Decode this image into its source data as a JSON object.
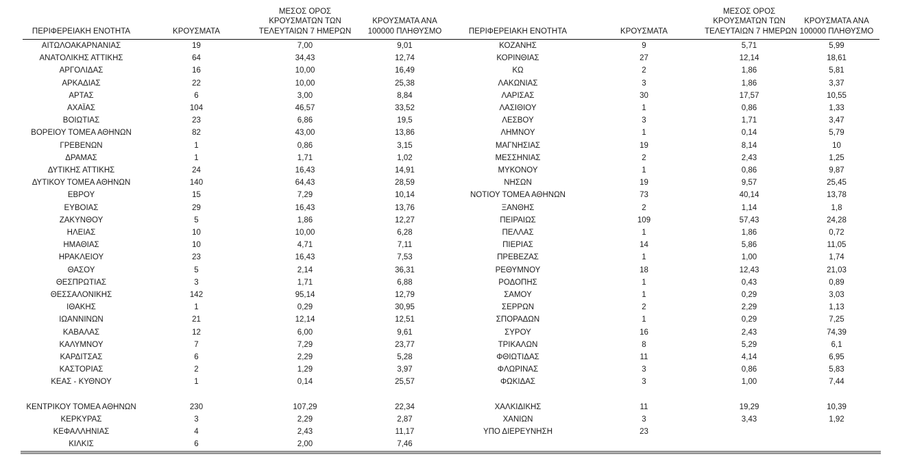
{
  "table": {
    "headers": {
      "region": "ΠΕΡΙΦΕΡΕΙΑΚΗ ΕΝΟΤΗΤΑ",
      "cases": "ΚΡΟΥΣΜΑΤΑ",
      "avg7_lines": [
        "ΜΕΣΟΣ ΟΡΟΣ",
        "ΚΡΟΥΣΜΑΤΩΝ ΤΩΝ",
        "ΤΕΛΕΥΤΑΙΩΝ 7 ΗΜΕΡΩΝ"
      ],
      "per100k_lines": [
        "ΚΡΟΥΣΜΑΤΑ ΑΝΑ",
        "100000 ΠΛΗΘΥΣΜΟ"
      ]
    },
    "left_rows": [
      {
        "region": "ΑΙΤΩΛΟΑΚΑΡΝΑΝΙΑΣ",
        "cases": "19",
        "avg7": "7,00",
        "per100k": "9,01"
      },
      {
        "region": "ΑΝΑΤΟΛΙΚΗΣ ΑΤΤΙΚΗΣ",
        "cases": "64",
        "avg7": "34,43",
        "per100k": "12,74"
      },
      {
        "region": "ΑΡΓΟΛΙΔΑΣ",
        "cases": "16",
        "avg7": "10,00",
        "per100k": "16,49"
      },
      {
        "region": "ΑΡΚΑΔΙΑΣ",
        "cases": "22",
        "avg7": "10,00",
        "per100k": "25,38"
      },
      {
        "region": "ΑΡΤΑΣ",
        "cases": "6",
        "avg7": "3,00",
        "per100k": "8,84"
      },
      {
        "region": "ΑΧΑΪΑΣ",
        "cases": "104",
        "avg7": "46,57",
        "per100k": "33,52"
      },
      {
        "region": "ΒΟΙΩΤΙΑΣ",
        "cases": "23",
        "avg7": "6,86",
        "per100k": "19,5"
      },
      {
        "region": "ΒΟΡΕΙΟΥ ΤΟΜΕΑ ΑΘΗΝΩΝ",
        "cases": "82",
        "avg7": "43,00",
        "per100k": "13,86"
      },
      {
        "region": "ΓΡΕΒΕΝΩΝ",
        "cases": "1",
        "avg7": "0,86",
        "per100k": "3,15"
      },
      {
        "region": "ΔΡΑΜΑΣ",
        "cases": "1",
        "avg7": "1,71",
        "per100k": "1,02"
      },
      {
        "region": "ΔΥΤΙΚΗΣ ΑΤΤΙΚΗΣ",
        "cases": "24",
        "avg7": "16,43",
        "per100k": "14,91"
      },
      {
        "region": "ΔΥΤΙΚΟΥ ΤΟΜΕΑ ΑΘΗΝΩΝ",
        "cases": "140",
        "avg7": "64,43",
        "per100k": "28,59"
      },
      {
        "region": "ΕΒΡΟΥ",
        "cases": "15",
        "avg7": "7,29",
        "per100k": "10,14"
      },
      {
        "region": "ΕΥΒΟΙΑΣ",
        "cases": "29",
        "avg7": "16,43",
        "per100k": "13,76"
      },
      {
        "region": "ΖΑΚΥΝΘΟΥ",
        "cases": "5",
        "avg7": "1,86",
        "per100k": "12,27"
      },
      {
        "region": "ΗΛΕΙΑΣ",
        "cases": "10",
        "avg7": "10,00",
        "per100k": "6,28"
      },
      {
        "region": "ΗΜΑΘΙΑΣ",
        "cases": "10",
        "avg7": "4,71",
        "per100k": "7,11"
      },
      {
        "region": "ΗΡΑΚΛΕΙΟΥ",
        "cases": "23",
        "avg7": "16,43",
        "per100k": "7,53"
      },
      {
        "region": "ΘΑΣΟΥ",
        "cases": "5",
        "avg7": "2,14",
        "per100k": "36,31"
      },
      {
        "region": "ΘΕΣΠΡΩΤΙΑΣ",
        "cases": "3",
        "avg7": "1,71",
        "per100k": "6,88"
      },
      {
        "region": "ΘΕΣΣΑΛΟΝΙΚΗΣ",
        "cases": "142",
        "avg7": "95,14",
        "per100k": "12,79"
      },
      {
        "region": "ΙΘΑΚΗΣ",
        "cases": "1",
        "avg7": "0,29",
        "per100k": "30,95"
      },
      {
        "region": "ΙΩΑΝΝΙΝΩΝ",
        "cases": "21",
        "avg7": "12,14",
        "per100k": "12,51"
      },
      {
        "region": "ΚΑΒΑΛΑΣ",
        "cases": "12",
        "avg7": "6,00",
        "per100k": "9,61"
      },
      {
        "region": "ΚΑΛΥΜΝΟΥ",
        "cases": "7",
        "avg7": "7,29",
        "per100k": "23,77"
      },
      {
        "region": "ΚΑΡΔΙΤΣΑΣ",
        "cases": "6",
        "avg7": "2,29",
        "per100k": "5,28"
      },
      {
        "region": "ΚΑΣΤΟΡΙΑΣ",
        "cases": "2",
        "avg7": "1,29",
        "per100k": "3,97"
      },
      {
        "region": "ΚΕΑΣ - ΚΥΘΝΟΥ",
        "cases": "1",
        "avg7": "0,14",
        "per100k": "25,57"
      },
      {
        "region": "",
        "cases": "",
        "avg7": "",
        "per100k": ""
      },
      {
        "region": "ΚΕΝΤΡΙΚΟΥ ΤΟΜΕΑ ΑΘΗΝΩΝ",
        "cases": "230",
        "avg7": "107,29",
        "per100k": "22,34"
      },
      {
        "region": "ΚΕΡΚΥΡΑΣ",
        "cases": "3",
        "avg7": "2,29",
        "per100k": "2,87"
      },
      {
        "region": "ΚΕΦΑΛΛΗΝΙΑΣ",
        "cases": "4",
        "avg7": "2,43",
        "per100k": "11,17"
      },
      {
        "region": "ΚΙΛΚΙΣ",
        "cases": "6",
        "avg7": "2,00",
        "per100k": "7,46"
      }
    ],
    "right_rows": [
      {
        "region": "ΚΟΖΑΝΗΣ",
        "cases": "9",
        "avg7": "5,71",
        "per100k": "5,99"
      },
      {
        "region": "ΚΟΡΙΝΘΙΑΣ",
        "cases": "27",
        "avg7": "12,14",
        "per100k": "18,61"
      },
      {
        "region": "ΚΩ",
        "cases": "2",
        "avg7": "1,86",
        "per100k": "5,81"
      },
      {
        "region": "ΛΑΚΩΝΙΑΣ",
        "cases": "3",
        "avg7": "1,86",
        "per100k": "3,37"
      },
      {
        "region": "ΛΑΡΙΣΑΣ",
        "cases": "30",
        "avg7": "17,57",
        "per100k": "10,55"
      },
      {
        "region": "ΛΑΣΙΘΙΟΥ",
        "cases": "1",
        "avg7": "0,86",
        "per100k": "1,33"
      },
      {
        "region": "ΛΕΣΒΟΥ",
        "cases": "3",
        "avg7": "1,71",
        "per100k": "3,47"
      },
      {
        "region": "ΛΗΜΝΟΥ",
        "cases": "1",
        "avg7": "0,14",
        "per100k": "5,79"
      },
      {
        "region": "ΜΑΓΝΗΣΙΑΣ",
        "cases": "19",
        "avg7": "8,14",
        "per100k": "10"
      },
      {
        "region": "ΜΕΣΣΗΝΙΑΣ",
        "cases": "2",
        "avg7": "2,43",
        "per100k": "1,25"
      },
      {
        "region": "ΜΥΚΟΝΟΥ",
        "cases": "1",
        "avg7": "0,86",
        "per100k": "9,87"
      },
      {
        "region": "ΝΗΣΩΝ",
        "cases": "19",
        "avg7": "9,57",
        "per100k": "25,45"
      },
      {
        "region": "ΝΟΤΙΟΥ ΤΟΜΕΑ ΑΘΗΝΩΝ",
        "cases": "73",
        "avg7": "40,14",
        "per100k": "13,78"
      },
      {
        "region": "ΞΑΝΘΗΣ",
        "cases": "2",
        "avg7": "1,14",
        "per100k": "1,8"
      },
      {
        "region": "ΠΕΙΡΑΙΩΣ",
        "cases": "109",
        "avg7": "57,43",
        "per100k": "24,28"
      },
      {
        "region": "ΠΕΛΛΑΣ",
        "cases": "1",
        "avg7": "1,86",
        "per100k": "0,72"
      },
      {
        "region": "ΠΙΕΡΙΑΣ",
        "cases": "14",
        "avg7": "5,86",
        "per100k": "11,05"
      },
      {
        "region": "ΠΡΕΒΕΖΑΣ",
        "cases": "1",
        "avg7": "1,00",
        "per100k": "1,74"
      },
      {
        "region": "ΡΕΘΥΜΝΟΥ",
        "cases": "18",
        "avg7": "12,43",
        "per100k": "21,03"
      },
      {
        "region": "ΡΟΔΟΠΗΣ",
        "cases": "1",
        "avg7": "0,43",
        "per100k": "0,89"
      },
      {
        "region": "ΣΑΜΟΥ",
        "cases": "1",
        "avg7": "0,29",
        "per100k": "3,03"
      },
      {
        "region": "ΣΕΡΡΩΝ",
        "cases": "2",
        "avg7": "2,29",
        "per100k": "1,13"
      },
      {
        "region": "ΣΠΟΡΑΔΩΝ",
        "cases": "1",
        "avg7": "0,29",
        "per100k": "7,25"
      },
      {
        "region": "ΣΥΡΟΥ",
        "cases": "16",
        "avg7": "2,43",
        "per100k": "74,39"
      },
      {
        "region": "ΤΡΙΚΑΛΩΝ",
        "cases": "8",
        "avg7": "5,29",
        "per100k": "6,1"
      },
      {
        "region": "ΦΘΙΩΤΙΔΑΣ",
        "cases": "11",
        "avg7": "4,14",
        "per100k": "6,95"
      },
      {
        "region": "ΦΛΩΡΙΝΑΣ",
        "cases": "3",
        "avg7": "0,86",
        "per100k": "5,83"
      },
      {
        "region": "ΦΩΚΙΔΑΣ",
        "cases": "3",
        "avg7": "1,00",
        "per100k": "7,44"
      },
      {
        "region": "",
        "cases": "",
        "avg7": "",
        "per100k": ""
      },
      {
        "region": "ΧΑΛΚΙΔΙΚΗΣ",
        "cases": "11",
        "avg7": "19,29",
        "per100k": "10,39"
      },
      {
        "region": "ΧΑΝΙΩΝ",
        "cases": "3",
        "avg7": "3,43",
        "per100k": "1,92"
      },
      {
        "region": "ΥΠΟ ΔΙΕΡΕΥΝΗΣΗ",
        "cases": "23",
        "avg7": "",
        "per100k": ""
      }
    ]
  }
}
